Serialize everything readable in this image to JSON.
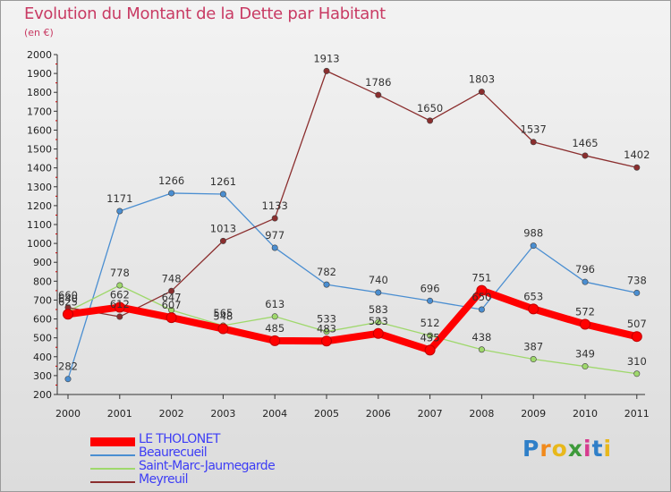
{
  "header": {
    "title": "Evolution du Montant de la Dette par Habitant",
    "subtitle": "(en €)"
  },
  "logo": {
    "letters": [
      "P",
      "r",
      "o",
      "x",
      "i",
      "t",
      "i"
    ],
    "colors": [
      "#2f7fc8",
      "#f18a1c",
      "#e8b81b",
      "#3d9a3a",
      "#d63b8f",
      "#2f7fc8",
      "#e8b81b"
    ]
  },
  "chart_data": {
    "type": "line",
    "title": "Evolution du Montant de la Dette par Habitant",
    "ylabel": "(en €)",
    "xlabel": "",
    "x": [
      "2000",
      "2001",
      "2002",
      "2003",
      "2004",
      "2005",
      "2006",
      "2007",
      "2008",
      "2009",
      "2010",
      "2011"
    ],
    "ylim": [
      200,
      2000
    ],
    "yticks": [
      200,
      300,
      400,
      500,
      600,
      700,
      800,
      900,
      1000,
      1100,
      1200,
      1300,
      1400,
      1500,
      1600,
      1700,
      1800,
      1900,
      2000
    ],
    "grid": false,
    "legend_position": "bottom-left",
    "series": [
      {
        "name": "LE THOLONET",
        "color": "#ff0000",
        "values": [
          625,
          662,
          607,
          548,
          485,
          483,
          523,
          435,
          751,
          653,
          572,
          507
        ],
        "labels": [
          "625",
          "662",
          "607",
          "548",
          "485",
          "483",
          "523",
          "435",
          "751",
          "653",
          "572",
          "507"
        ]
      },
      {
        "name": "Beaurecueil",
        "color": "#4a8ed1",
        "values": [
          282,
          1171,
          1266,
          1261,
          977,
          782,
          740,
          696,
          650,
          988,
          796,
          738
        ],
        "labels": [
          "282",
          "1171",
          "1266",
          "1261",
          "977",
          "782",
          "740",
          "696",
          "650",
          "988",
          "796",
          "738"
        ]
      },
      {
        "name": "Saint-Marc-Jaumegarde",
        "color": "#9fd86c",
        "values": [
          640,
          778,
          647,
          565,
          613,
          533,
          583,
          512,
          438,
          387,
          349,
          310
        ],
        "labels": [
          "640",
          "778",
          "647",
          "565",
          "613",
          "533",
          "583",
          "512",
          "438",
          "387",
          "349",
          "310"
        ]
      },
      {
        "name": "Meyreuil",
        "color": "#8b2e2e",
        "values": [
          660,
          612,
          748,
          1013,
          1133,
          1913,
          1786,
          1650,
          1803,
          1537,
          1465,
          1402
        ],
        "labels": [
          "660",
          "612",
          "748",
          "1013",
          "1133",
          "1913",
          "1786",
          "1650",
          "1803",
          "1537",
          "1465",
          "1402"
        ]
      }
    ]
  }
}
